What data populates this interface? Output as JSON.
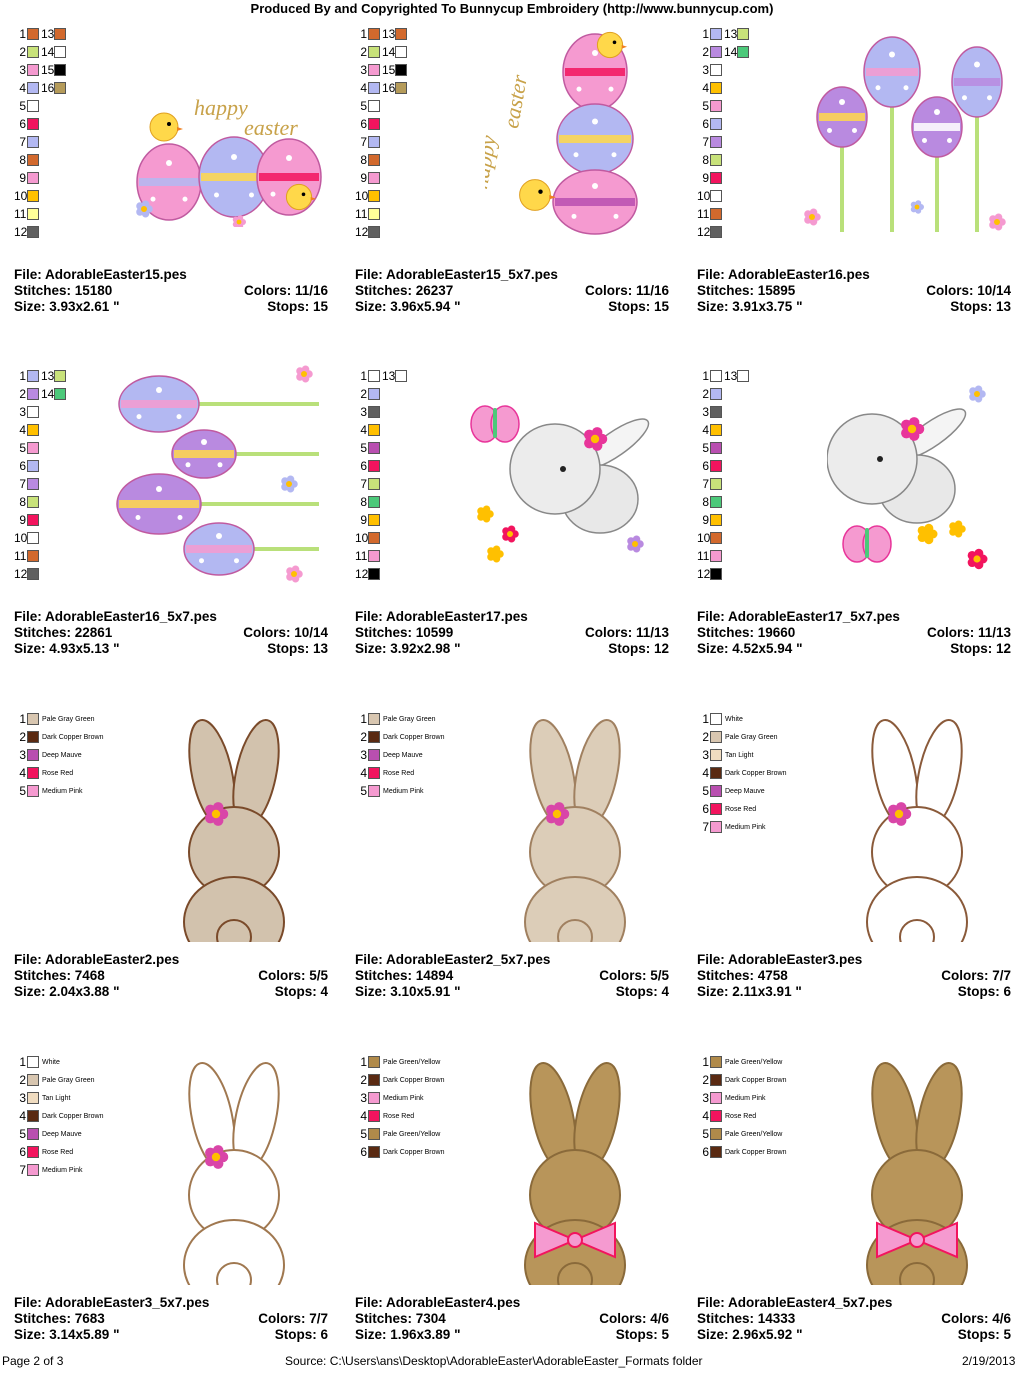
{
  "header": "Produced By and Copyrighted To Bunnycup Embroidery (http://www.bunnycup.com)",
  "labels": {
    "file": "File: ",
    "stitches": "Stitches: ",
    "colors": "Colors: ",
    "size": "Size: ",
    "stops": "Stops: "
  },
  "cells": [
    {
      "file": "AdorableEaster15.pes",
      "stitches": "15180",
      "colors": "11/16",
      "size": "3.93x2.61 \"",
      "stops": "15",
      "legend": [
        [
          "1",
          "#d2692d"
        ],
        [
          "2",
          "#c8e27a"
        ],
        [
          "3",
          "#f59ad0"
        ],
        [
          "4",
          "#b3b8f2"
        ],
        [
          "5",
          "#ffffff"
        ],
        [
          "6",
          "#f2145e"
        ],
        [
          "7",
          "#b3b8f2"
        ],
        [
          "8",
          "#d2692d"
        ],
        [
          "9",
          "#f59ad0"
        ],
        [
          "10",
          "#ffc000"
        ],
        [
          "11",
          "#ffff99"
        ],
        [
          "12",
          "#606060"
        ],
        [
          "13",
          "#d2692d"
        ],
        [
          "14",
          "#ffffff"
        ],
        [
          "15",
          "#000000"
        ],
        [
          "16",
          "#b59b5a"
        ]
      ]
    },
    {
      "file": "AdorableEaster15_5x7.pes",
      "stitches": "26237",
      "colors": "11/16",
      "size": "3.96x5.94 \"",
      "stops": "15",
      "legend": [
        [
          "1",
          "#d2692d"
        ],
        [
          "2",
          "#c8e27a"
        ],
        [
          "3",
          "#f59ad0"
        ],
        [
          "4",
          "#b3b8f2"
        ],
        [
          "5",
          "#ffffff"
        ],
        [
          "6",
          "#f2145e"
        ],
        [
          "7",
          "#b3b8f2"
        ],
        [
          "8",
          "#d2692d"
        ],
        [
          "9",
          "#f59ad0"
        ],
        [
          "10",
          "#ffc000"
        ],
        [
          "11",
          "#ffff99"
        ],
        [
          "12",
          "#606060"
        ],
        [
          "13",
          "#d2692d"
        ],
        [
          "14",
          "#ffffff"
        ],
        [
          "15",
          "#000000"
        ],
        [
          "16",
          "#b59b5a"
        ]
      ]
    },
    {
      "file": "AdorableEaster16.pes",
      "stitches": "15895",
      "colors": "10/14",
      "size": "3.91x3.75 \"",
      "stops": "13",
      "legend": [
        [
          "1",
          "#b3b8f2"
        ],
        [
          "2",
          "#b98ae0"
        ],
        [
          "3",
          "#ffffff"
        ],
        [
          "4",
          "#ffc000"
        ],
        [
          "5",
          "#f59ad0"
        ],
        [
          "6",
          "#b3b8f2"
        ],
        [
          "7",
          "#b98ae0"
        ],
        [
          "8",
          "#c8e27a"
        ],
        [
          "9",
          "#f2145e"
        ],
        [
          "10",
          "#ffffff"
        ],
        [
          "11",
          "#d2692d"
        ],
        [
          "12",
          "#606060"
        ],
        [
          "13",
          "#c8e27a"
        ],
        [
          "14",
          "#4cc97a"
        ]
      ]
    },
    {
      "file": "AdorableEaster16_5x7.pes",
      "stitches": "22861",
      "colors": "10/14",
      "size": "4.93x5.13 \"",
      "stops": "13",
      "legend": [
        [
          "1",
          "#b3b8f2"
        ],
        [
          "2",
          "#b98ae0"
        ],
        [
          "3",
          "#ffffff"
        ],
        [
          "4",
          "#ffc000"
        ],
        [
          "5",
          "#f59ad0"
        ],
        [
          "6",
          "#b3b8f2"
        ],
        [
          "7",
          "#b98ae0"
        ],
        [
          "8",
          "#c8e27a"
        ],
        [
          "9",
          "#f2145e"
        ],
        [
          "10",
          "#ffffff"
        ],
        [
          "11",
          "#d2692d"
        ],
        [
          "12",
          "#606060"
        ],
        [
          "13",
          "#c8e27a"
        ],
        [
          "14",
          "#4cc97a"
        ]
      ]
    },
    {
      "file": "AdorableEaster17.pes",
      "stitches": "10599",
      "colors": "11/13",
      "size": "3.92x2.98 \"",
      "stops": "12",
      "legend": [
        [
          "1",
          "#ffffff"
        ],
        [
          "2",
          "#b3b8f2"
        ],
        [
          "3",
          "#606060"
        ],
        [
          "4",
          "#ffc000"
        ],
        [
          "5",
          "#b94fb0"
        ],
        [
          "6",
          "#f2145e"
        ],
        [
          "7",
          "#c8e27a"
        ],
        [
          "8",
          "#4cc97a"
        ],
        [
          "9",
          "#ffc000"
        ],
        [
          "10",
          "#d2692d"
        ],
        [
          "11",
          "#f59ad0"
        ],
        [
          "12",
          "#000000"
        ],
        [
          "13",
          "#ffffff"
        ]
      ]
    },
    {
      "file": "AdorableEaster17_5x7.pes",
      "stitches": "19660",
      "colors": "11/13",
      "size": "4.52x5.94 \"",
      "stops": "12",
      "legend": [
        [
          "1",
          "#ffffff"
        ],
        [
          "2",
          "#b3b8f2"
        ],
        [
          "3",
          "#606060"
        ],
        [
          "4",
          "#ffc000"
        ],
        [
          "5",
          "#b94fb0"
        ],
        [
          "6",
          "#f2145e"
        ],
        [
          "7",
          "#c8e27a"
        ],
        [
          "8",
          "#4cc97a"
        ],
        [
          "9",
          "#ffc000"
        ],
        [
          "10",
          "#d2692d"
        ],
        [
          "11",
          "#f59ad0"
        ],
        [
          "12",
          "#000000"
        ],
        [
          "13",
          "#ffffff"
        ]
      ]
    },
    {
      "file": "AdorableEaster2.pes",
      "stitches": "7468",
      "colors": "5/5",
      "size": "2.04x3.88 \"",
      "stops": "4",
      "legend": [
        [
          "1",
          "#d8c6b0",
          "Pale Gray Green"
        ],
        [
          "2",
          "#5a2a12",
          "Dark Copper Brown"
        ],
        [
          "3",
          "#b94fb0",
          "Deep Mauve"
        ],
        [
          "4",
          "#f2145e",
          "Rose Red"
        ],
        [
          "5",
          "#f59ad0",
          "Medium Pink"
        ]
      ]
    },
    {
      "file": "AdorableEaster2_5x7.pes",
      "stitches": "14894",
      "colors": "5/5",
      "size": "3.10x5.91 \"",
      "stops": "4",
      "legend": [
        [
          "1",
          "#d8c6b0",
          "Pale Gray Green"
        ],
        [
          "2",
          "#5a2a12",
          "Dark Copper Brown"
        ],
        [
          "3",
          "#b94fb0",
          "Deep Mauve"
        ],
        [
          "4",
          "#f2145e",
          "Rose Red"
        ],
        [
          "5",
          "#f59ad0",
          "Medium Pink"
        ]
      ]
    },
    {
      "file": "AdorableEaster3.pes",
      "stitches": "4758",
      "colors": "7/7",
      "size": "2.11x3.91 \"",
      "stops": "6",
      "legend": [
        [
          "1",
          "#ffffff",
          "White"
        ],
        [
          "2",
          "#d8c6b0",
          "Pale Gray Green"
        ],
        [
          "3",
          "#f0dcc0",
          "Tan Light"
        ],
        [
          "4",
          "#5a2a12",
          "Dark Copper Brown"
        ],
        [
          "5",
          "#b94fb0",
          "Deep Mauve"
        ],
        [
          "6",
          "#f2145e",
          "Rose Red"
        ],
        [
          "7",
          "#f59ad0",
          "Medium Pink"
        ]
      ]
    },
    {
      "file": "AdorableEaster3_5x7.pes",
      "stitches": "7683",
      "colors": "7/7",
      "size": "3.14x5.89 \"",
      "stops": "6",
      "legend": [
        [
          "1",
          "#ffffff",
          "White"
        ],
        [
          "2",
          "#d8c6b0",
          "Pale Gray Green"
        ],
        [
          "3",
          "#f0dcc0",
          "Tan Light"
        ],
        [
          "4",
          "#5a2a12",
          "Dark Copper Brown"
        ],
        [
          "5",
          "#b94fb0",
          "Deep Mauve"
        ],
        [
          "6",
          "#f2145e",
          "Rose Red"
        ],
        [
          "7",
          "#f59ad0",
          "Medium Pink"
        ]
      ]
    },
    {
      "file": "AdorableEaster4.pes",
      "stitches": "7304",
      "colors": "4/6",
      "size": "1.96x3.89 \"",
      "stops": "5",
      "legend": [
        [
          "1",
          "#b08a4a",
          "Pale Green/Yellow"
        ],
        [
          "2",
          "#5a2a12",
          "Dark Copper Brown"
        ],
        [
          "3",
          "#f59ad0",
          "Medium Pink"
        ],
        [
          "4",
          "#f2145e",
          "Rose Red"
        ],
        [
          "5",
          "#b08a4a",
          "Pale Green/Yellow"
        ],
        [
          "6",
          "#5a2a12",
          "Dark Copper Brown"
        ]
      ]
    },
    {
      "file": "AdorableEaster4_5x7.pes",
      "stitches": "14333",
      "colors": "4/6",
      "size": "2.96x5.92 \"",
      "stops": "5",
      "legend": [
        [
          "1",
          "#b08a4a",
          "Pale Green/Yellow"
        ],
        [
          "2",
          "#5a2a12",
          "Dark Copper Brown"
        ],
        [
          "3",
          "#f59ad0",
          "Medium Pink"
        ],
        [
          "4",
          "#f2145e",
          "Rose Red"
        ],
        [
          "5",
          "#b08a4a",
          "Pale Green/Yellow"
        ],
        [
          "6",
          "#5a2a12",
          "Dark Copper Brown"
        ]
      ]
    }
  ],
  "art_text": {
    "happy": "happy",
    "easter": "easter"
  },
  "footer": {
    "page": "Page 2 of 3",
    "source": "Source: C:\\Users\\ans\\Desktop\\AdorableEaster\\AdorableEaster_Formats folder",
    "date": "2/19/2013"
  }
}
